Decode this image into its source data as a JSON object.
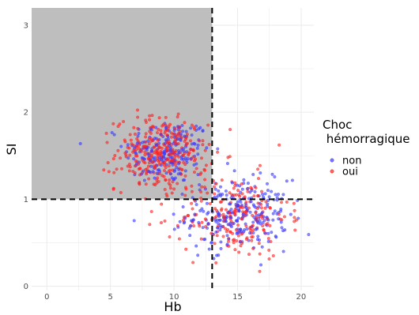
{
  "chart_data": {
    "type": "scatter",
    "xlabel": "Hb",
    "ylabel": "SI",
    "xlim": [
      -1.2,
      21
    ],
    "ylim": [
      -0.05,
      3.2
    ],
    "x_ticks": [
      0,
      5,
      10,
      15,
      20
    ],
    "y_ticks": [
      0,
      1,
      2,
      3
    ],
    "grid": true,
    "thresholds": {
      "x": 13,
      "y": 1
    },
    "shaded_region": {
      "x": [
        -1.2,
        13
      ],
      "y": [
        1,
        3.2
      ],
      "color": "#bebebe"
    },
    "legend": {
      "title_line1": "Choc",
      "title_line2": " hémorragique",
      "placement": "right"
    },
    "series": [
      {
        "name": "non",
        "color": "#3a3aff",
        "clusters": [
          {
            "cx": 9.5,
            "cy": 1.55,
            "sx": 1.7,
            "sy": 0.19,
            "n": 200
          },
          {
            "cx": 15.0,
            "cy": 0.82,
            "sx": 2.0,
            "sy": 0.2,
            "n": 260
          }
        ]
      },
      {
        "name": "oui",
        "color": "#ff2020",
        "clusters": [
          {
            "cx": 9.0,
            "cy": 1.52,
            "sx": 1.8,
            "sy": 0.21,
            "n": 320
          },
          {
            "cx": 14.8,
            "cy": 0.8,
            "sx": 2.1,
            "sy": 0.24,
            "n": 220
          }
        ]
      }
    ]
  }
}
